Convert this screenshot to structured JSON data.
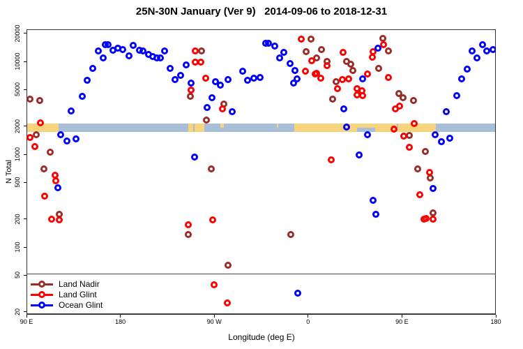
{
  "chart_data": {
    "type": "scatter",
    "title": "25N-30N January (Ver 9)   2014-09-06 to 2018-12-31",
    "xlabel": "Longitude (deg E)",
    "ylabel": "N Total",
    "x_axis": {
      "range": [
        90,
        540
      ],
      "wraps_longitude": true,
      "ticks": [
        {
          "value": 90,
          "label": "90 E"
        },
        {
          "value": 180,
          "label": "180"
        },
        {
          "value": 270,
          "label": "90 W"
        },
        {
          "value": 360,
          "label": "0"
        },
        {
          "value": 450,
          "label": "90 E"
        },
        {
          "value": 540,
          "label": "180"
        }
      ]
    },
    "y_axis": {
      "scale": "log",
      "range": [
        18,
        22000
      ],
      "ticks": [
        20000,
        10000,
        5000,
        2000,
        1000,
        500,
        200,
        100,
        50,
        20
      ]
    },
    "reference_line_y": 52,
    "land_ocean_band": {
      "center_y": 2000,
      "colors": {
        "land": "#F8D57C",
        "ocean": "#A9BED8"
      },
      "segments": [
        {
          "type": "land",
          "from": 90,
          "to": 121
        },
        {
          "type": "ocean",
          "from": 121,
          "to": 245
        },
        {
          "type": "land",
          "from": 245,
          "to": 260.5
        },
        {
          "type": "ocean",
          "from": 260.5,
          "to": 347
        },
        {
          "type": "land",
          "from": 347,
          "to": 482.5
        },
        {
          "type": "ocean",
          "from": 482.5,
          "to": 540
        }
      ],
      "flecks": [
        {
          "type": "ocean",
          "from": 249.5,
          "to": 251,
          "part": "full"
        },
        {
          "type": "land",
          "from": 276,
          "to": 279,
          "part": "top"
        },
        {
          "type": "land",
          "from": 330,
          "to": 331.5,
          "part": "top"
        },
        {
          "type": "ocean",
          "from": 407,
          "to": 424,
          "part": "bottom"
        },
        {
          "type": "ocean",
          "from": 445,
          "to": 446.5,
          "part": "top"
        }
      ]
    },
    "legend": {
      "position": "bottom-left",
      "entries": [
        "Land Nadir",
        "Land Glint",
        "Ocean Glint"
      ]
    },
    "series": [
      {
        "name": "Land Nadir",
        "color": "#9B2C28",
        "points": [
          [
            93.5,
            3930
          ],
          [
            102.5,
            3800
          ],
          [
            99.5,
            1630
          ],
          [
            112.5,
            1050
          ],
          [
            106.5,
            695
          ],
          [
            121.5,
            226
          ],
          [
            258,
            13000
          ],
          [
            247,
            4180
          ],
          [
            279,
            3480
          ],
          [
            262.5,
            2320
          ],
          [
            267,
            695
          ],
          [
            245,
            137
          ],
          [
            283.5,
            64
          ],
          [
            363,
            17500
          ],
          [
            358,
            12800
          ],
          [
            368,
            10900
          ],
          [
            373,
            13500
          ],
          [
            378,
            10000
          ],
          [
            397,
            10000
          ],
          [
            387,
            6100
          ],
          [
            383.5,
            3920
          ],
          [
            343.5,
            137
          ],
          [
            431.5,
            17800
          ],
          [
            437,
            13000
          ],
          [
            401,
            9300
          ],
          [
            403,
            8000
          ],
          [
            428,
            8400
          ],
          [
            447,
            4520
          ],
          [
            451,
            4080
          ],
          [
            461,
            3790
          ],
          [
            457,
            1590
          ],
          [
            465,
            695
          ],
          [
            472.5,
            1065
          ],
          [
            477,
            552
          ],
          [
            480,
            234
          ]
        ]
      },
      {
        "name": "Land Glint",
        "color": "#FF0000",
        "points": [
          [
            103.5,
            2180
          ],
          [
            93.5,
            1520
          ],
          [
            98,
            1210
          ],
          [
            117.5,
            594
          ],
          [
            118,
            518
          ],
          [
            107.5,
            354
          ],
          [
            114,
            200
          ],
          [
            121.5,
            196
          ],
          [
            252,
            13000
          ],
          [
            252,
            9900
          ],
          [
            257,
            9900
          ],
          [
            262,
            6600
          ],
          [
            248,
            4900
          ],
          [
            278,
            3080
          ],
          [
            268.5,
            196
          ],
          [
            245,
            174
          ],
          [
            270,
            39
          ],
          [
            282.5,
            25
          ],
          [
            353.5,
            17500
          ],
          [
            363.5,
            10200
          ],
          [
            357.5,
            7900
          ],
          [
            368,
            7400
          ],
          [
            378,
            9000
          ],
          [
            367,
            7300
          ],
          [
            372,
            6600
          ],
          [
            393.5,
            12600
          ],
          [
            393,
            6400
          ],
          [
            388,
            5100
          ],
          [
            382,
            870
          ],
          [
            432.5,
            15200
          ],
          [
            422.5,
            12800
          ],
          [
            421.5,
            11100
          ],
          [
            399,
            6500
          ],
          [
            417,
            7300
          ],
          [
            437,
            6700
          ],
          [
            407,
            5100
          ],
          [
            411.5,
            4850
          ],
          [
            407,
            4380
          ],
          [
            412.5,
            4300
          ],
          [
            448,
            3300
          ],
          [
            444,
            3080
          ],
          [
            462,
            2150
          ],
          [
            442.5,
            1880
          ],
          [
            452,
            1560
          ],
          [
            457,
            1190
          ],
          [
            467,
            367
          ],
          [
            471,
            200
          ],
          [
            476.5,
            635
          ],
          [
            473,
            203
          ],
          [
            480,
            200
          ]
        ]
      },
      {
        "name": "Ocean Glint",
        "color": "#0000FF",
        "points": [
          [
            165.5,
            15200
          ],
          [
            159,
            13000
          ],
          [
            163.5,
            10900
          ],
          [
            153.5,
            8400
          ],
          [
            148,
            6270
          ],
          [
            143.5,
            4210
          ],
          [
            133,
            2930
          ],
          [
            122.5,
            1630
          ],
          [
            129,
            1390
          ],
          [
            137.5,
            1470
          ],
          [
            120,
            436
          ],
          [
            168,
            15200
          ],
          [
            173,
            13200
          ],
          [
            177.5,
            13900
          ],
          [
            182.5,
            13500
          ],
          [
            188.5,
            11500
          ],
          [
            192.5,
            14900
          ],
          [
            198,
            13200
          ],
          [
            201.5,
            13000
          ],
          [
            207,
            11900
          ],
          [
            211,
            11300
          ],
          [
            215,
            10900
          ],
          [
            218.5,
            10900
          ],
          [
            222.5,
            13000
          ],
          [
            228,
            8400
          ],
          [
            232.5,
            6400
          ],
          [
            238,
            7100
          ],
          [
            243,
            9150
          ],
          [
            248,
            5850
          ],
          [
            271,
            6100
          ],
          [
            276,
            5600
          ],
          [
            283.5,
            6400
          ],
          [
            297.5,
            7800
          ],
          [
            302,
            6300
          ],
          [
            308,
            6600
          ],
          [
            314,
            6700
          ],
          [
            319.5,
            15700
          ],
          [
            268,
            4080
          ],
          [
            263,
            3200
          ],
          [
            287.5,
            2860
          ],
          [
            251,
            930
          ],
          [
            322,
            15700
          ],
          [
            328,
            14600
          ],
          [
            337,
            12600
          ],
          [
            333,
            10900
          ],
          [
            343,
            9500
          ],
          [
            347.5,
            8000
          ],
          [
            349.5,
            6500
          ],
          [
            346,
            5850
          ],
          [
            394,
            3070
          ],
          [
            397,
            1960
          ],
          [
            350,
            32
          ],
          [
            427,
            13900
          ],
          [
            412.5,
            6500
          ],
          [
            417,
            1630
          ],
          [
            409,
            980
          ],
          [
            422,
            320
          ],
          [
            425,
            226
          ],
          [
            527,
            15200
          ],
          [
            517.5,
            13000
          ],
          [
            531.5,
            13000
          ],
          [
            537,
            13500
          ],
          [
            522,
            10900
          ],
          [
            512.5,
            8250
          ],
          [
            507.5,
            6500
          ],
          [
            502.5,
            4280
          ],
          [
            492.5,
            2860
          ],
          [
            482,
            1630
          ],
          [
            488,
            1370
          ],
          [
            496,
            1490
          ],
          [
            480,
            430
          ]
        ]
      }
    ]
  }
}
